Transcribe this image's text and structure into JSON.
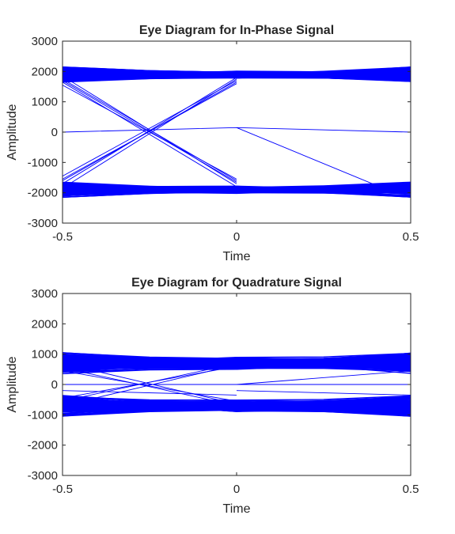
{
  "chart_data": [
    {
      "type": "line",
      "title": "Eye Diagram for In-Phase Signal",
      "xlabel": "Time",
      "ylabel": "Amplitude",
      "xlim": [
        -0.5,
        0.5
      ],
      "ylim": [
        -3000,
        3000
      ],
      "x_ticks": [
        -0.5,
        0,
        0.5
      ],
      "x_tick_labels": [
        "-0.5",
        "0",
        "0.5"
      ],
      "y_ticks": [
        -3000,
        -2000,
        -1000,
        0,
        1000,
        2000,
        3000
      ],
      "y_tick_labels": [
        "-3000",
        "-2000",
        "-1000",
        "0",
        "1000",
        "2000",
        "3000"
      ],
      "grid": false,
      "line_color": "#0000ff",
      "symbol_levels": [
        -1900,
        1900
      ],
      "band_halfwidth": [
        250,
        120,
        250
      ],
      "crossing_x": -0.25,
      "zero_trace_points": [
        [
          -0.5,
          0
        ],
        [
          0,
          150
        ],
        [
          0.5,
          0
        ]
      ],
      "transition_traces": [
        {
          "x": [
            -0.5,
            0
          ],
          "y": [
            -1850,
            1750
          ]
        },
        {
          "x": [
            -0.5,
            0
          ],
          "y": [
            -1700,
            1800
          ]
        },
        {
          "x": [
            -0.5,
            0
          ],
          "y": [
            -1600,
            1650
          ]
        },
        {
          "x": [
            -0.5,
            0
          ],
          "y": [
            -1550,
            1600
          ]
        },
        {
          "x": [
            -0.5,
            0
          ],
          "y": [
            -1450,
            1700
          ]
        },
        {
          "x": [
            -0.5,
            0
          ],
          "y": [
            1850,
            -1700
          ]
        },
        {
          "x": [
            -0.5,
            0
          ],
          "y": [
            1700,
            -1650
          ]
        },
        {
          "x": [
            -0.5,
            0
          ],
          "y": [
            1650,
            -1800
          ]
        },
        {
          "x": [
            -0.5,
            0
          ],
          "y": [
            1550,
            -1550
          ]
        },
        {
          "x": [
            -0.5,
            0
          ],
          "y": [
            1750,
            -1600
          ]
        },
        {
          "x": [
            0,
            0.4
          ],
          "y": [
            150,
            -1750
          ]
        }
      ]
    },
    {
      "type": "line",
      "title": "Eye Diagram for Quadrature Signal",
      "xlabel": "Time",
      "ylabel": "Amplitude",
      "xlim": [
        -0.5,
        0.5
      ],
      "ylim": [
        -3000,
        3000
      ],
      "x_ticks": [
        -0.5,
        0,
        0.5
      ],
      "x_tick_labels": [
        "-0.5",
        "0",
        "0.5"
      ],
      "y_ticks": [
        -3000,
        -2000,
        -1000,
        0,
        1000,
        2000,
        3000
      ],
      "y_tick_labels": [
        "-3000",
        "-2000",
        "-1000",
        "0",
        "1000",
        "2000",
        "3000"
      ],
      "grid": false,
      "line_color": "#0000ff",
      "symbol_levels": [
        -700,
        700
      ],
      "band_halfwidth": [
        350,
        200,
        350
      ],
      "crossing_x": -0.25,
      "zero_trace_points": [
        [
          -0.5,
          0
        ],
        [
          0,
          0
        ],
        [
          0.5,
          0
        ]
      ],
      "transition_traces": [
        {
          "x": [
            -0.5,
            0
          ],
          "y": [
            -700,
            650
          ]
        },
        {
          "x": [
            -0.5,
            0
          ],
          "y": [
            -550,
            700
          ]
        },
        {
          "x": [
            -0.5,
            0
          ],
          "y": [
            -450,
            600
          ]
        },
        {
          "x": [
            -0.5,
            0
          ],
          "y": [
            700,
            -650
          ]
        },
        {
          "x": [
            -0.5,
            0
          ],
          "y": [
            550,
            -700
          ]
        },
        {
          "x": [
            -0.5,
            0
          ],
          "y": [
            450,
            -550
          ]
        },
        {
          "x": [
            -0.5,
            0
          ],
          "y": [
            -200,
            -350
          ]
        },
        {
          "x": [
            0,
            0.5
          ],
          "y": [
            -200,
            -350
          ]
        },
        {
          "x": [
            0,
            0.5
          ],
          "y": [
            0,
            450
          ]
        }
      ]
    }
  ]
}
